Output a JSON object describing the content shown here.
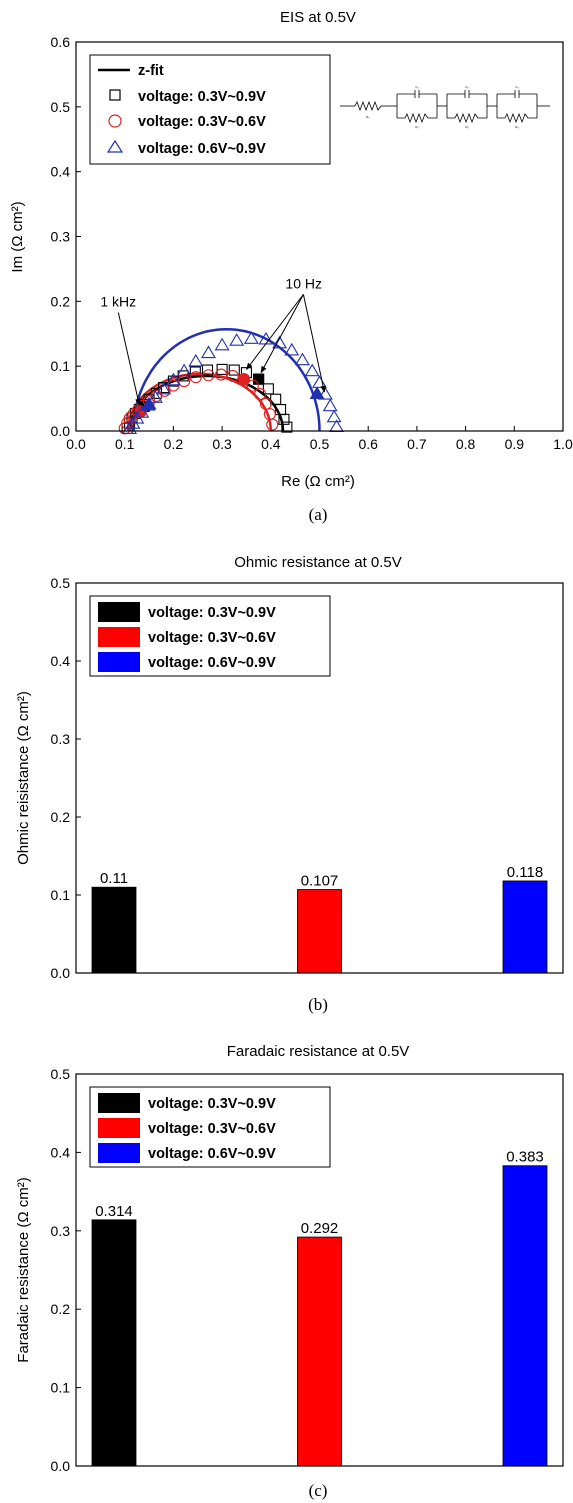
{
  "chart_data": [
    {
      "panel": "a",
      "type": "scatter",
      "title": "EIS at 0.5V",
      "xlabel": "Re (Ω cm²)",
      "ylabel": "Im (Ω cm²)",
      "xlim": [
        0.0,
        1.0
      ],
      "ylim": [
        0.0,
        0.6
      ],
      "xticks": [
        "0.0",
        "0.1",
        "0.2",
        "0.3",
        "0.4",
        "0.5",
        "0.6",
        "0.7",
        "0.8",
        "0.9",
        "1.0"
      ],
      "yticks": [
        "0.0",
        "0.1",
        "0.2",
        "0.3",
        "0.4",
        "0.5",
        "0.6"
      ],
      "grid": false,
      "legend_position": "top-left",
      "caption": "(a)",
      "legend": [
        {
          "label": "z-fit",
          "marker": "line",
          "color": "#000000"
        },
        {
          "label": "voltage: 0.3V~0.9V",
          "marker": "square",
          "color": "#000000"
        },
        {
          "label": "voltage: 0.3V~0.6V",
          "marker": "circle",
          "color": "#e02020"
        },
        {
          "label": "voltage: 0.6V~0.9V",
          "marker": "triangle",
          "color": "#2030b0"
        }
      ],
      "series": [
        {
          "name": "voltage: 0.3V~0.9V",
          "marker": "square",
          "color": "#000000",
          "x": [
            0.105,
            0.11,
            0.115,
            0.122,
            0.13,
            0.14,
            0.15,
            0.165,
            0.18,
            0.2,
            0.22,
            0.245,
            0.27,
            0.3,
            0.325,
            0.35,
            0.375,
            0.395,
            0.41,
            0.42,
            0.427,
            0.433
          ],
          "y": [
            0.004,
            0.012,
            0.02,
            0.027,
            0.033,
            0.041,
            0.049,
            0.058,
            0.067,
            0.077,
            0.085,
            0.091,
            0.094,
            0.095,
            0.094,
            0.09,
            0.08,
            0.065,
            0.049,
            0.033,
            0.018,
            0.006
          ],
          "highlight": [
            {
              "x": 0.14,
              "y": 0.038
            },
            {
              "x": 0.375,
              "y": 0.08
            }
          ]
        },
        {
          "name": "voltage: 0.3V~0.6V",
          "marker": "circle",
          "color": "#e02020",
          "x": [
            0.1,
            0.105,
            0.11,
            0.118,
            0.127,
            0.138,
            0.15,
            0.165,
            0.182,
            0.2,
            0.222,
            0.246,
            0.272,
            0.298,
            0.322,
            0.345,
            0.363,
            0.378,
            0.39,
            0.398,
            0.403
          ],
          "y": [
            0.004,
            0.012,
            0.019,
            0.026,
            0.032,
            0.039,
            0.046,
            0.054,
            0.062,
            0.07,
            0.077,
            0.083,
            0.086,
            0.087,
            0.085,
            0.08,
            0.07,
            0.057,
            0.042,
            0.026,
            0.01
          ],
          "highlight": [
            {
              "x": 0.133,
              "y": 0.03
            },
            {
              "x": 0.345,
              "y": 0.08
            }
          ]
        },
        {
          "name": "voltage: 0.6V~0.9V",
          "marker": "triangle",
          "color": "#2030b0",
          "x": [
            0.11,
            0.117,
            0.125,
            0.135,
            0.148,
            0.163,
            0.18,
            0.2,
            0.222,
            0.246,
            0.272,
            0.3,
            0.33,
            0.36,
            0.39,
            0.418,
            0.443,
            0.465,
            0.485,
            0.5,
            0.512,
            0.522,
            0.53,
            0.535
          ],
          "y": [
            0.004,
            0.012,
            0.02,
            0.029,
            0.04,
            0.052,
            0.065,
            0.079,
            0.093,
            0.108,
            0.121,
            0.133,
            0.14,
            0.143,
            0.142,
            0.136,
            0.125,
            0.11,
            0.093,
            0.075,
            0.057,
            0.039,
            0.022,
            0.007
          ],
          "highlight": [
            {
              "x": 0.15,
              "y": 0.042
            },
            {
              "x": 0.495,
              "y": 0.058
            }
          ]
        }
      ],
      "fits": [
        {
          "name": "fit 0.3V~0.9V",
          "color": "#000000",
          "x0": 0.11,
          "x1": 0.425,
          "h": 0.085
        },
        {
          "name": "fit 0.3V~0.6V",
          "color": "#e02020",
          "x0": 0.107,
          "x1": 0.4,
          "h": 0.088
        },
        {
          "name": "fit 0.6V~0.9V",
          "color": "#2030b0",
          "x0": 0.118,
          "x1": 0.5,
          "h": 0.157
        }
      ],
      "annotations": [
        {
          "text": "1 kHz",
          "x": 0.05,
          "y": 0.192,
          "arrows": [
            {
              "to_x": 0.13,
              "to_y": 0.04
            }
          ]
        },
        {
          "text": "10 Hz",
          "x": 0.43,
          "y": 0.22,
          "arrows": [
            {
              "to_x": 0.35,
              "to_y": 0.095
            },
            {
              "to_x": 0.38,
              "to_y": 0.09
            },
            {
              "to_x": 0.51,
              "to_y": 0.06
            }
          ]
        }
      ],
      "inset": {
        "type": "equivalent-circuit",
        "labels": [
          "R₀",
          "C₁",
          "R₁",
          "C₂",
          "R₂",
          "C₃",
          "R₃"
        ]
      }
    },
    {
      "panel": "b",
      "type": "bar",
      "title": "Ohmic resistance at 0.5V",
      "ylabel": "Ohmic reisistance (Ω cm²)",
      "xlabel": "",
      "ylim": [
        0.0,
        0.5
      ],
      "yticks": [
        "0.0",
        "0.1",
        "0.2",
        "0.3",
        "0.4",
        "0.5"
      ],
      "grid": false,
      "legend_position": "top-left",
      "caption": "(b)",
      "categories": [
        "voltage: 0.3V~0.9V",
        "voltage: 0.3V~0.6V",
        "voltage: 0.6V~0.9V"
      ],
      "values": [
        0.11,
        0.107,
        0.118
      ],
      "value_labels": [
        "0.11",
        "0.107",
        "0.118"
      ],
      "colors": [
        "#000000",
        "#ff0000",
        "#0000ff"
      ]
    },
    {
      "panel": "c",
      "type": "bar",
      "title": "Faradaic resistance at 0.5V",
      "ylabel": "Faradaic resistance (Ω cm²)",
      "xlabel": "",
      "ylim": [
        0.0,
        0.5
      ],
      "yticks": [
        "0.0",
        "0.1",
        "0.2",
        "0.3",
        "0.4",
        "0.5"
      ],
      "grid": false,
      "legend_position": "top-left",
      "caption": "(c)",
      "categories": [
        "voltage: 0.3V~0.9V",
        "voltage: 0.3V~0.6V",
        "voltage: 0.6V~0.9V"
      ],
      "values": [
        0.314,
        0.292,
        0.383
      ],
      "value_labels": [
        "0.314",
        "0.292",
        "0.383"
      ],
      "colors": [
        "#000000",
        "#ff0000",
        "#0000ff"
      ]
    }
  ]
}
